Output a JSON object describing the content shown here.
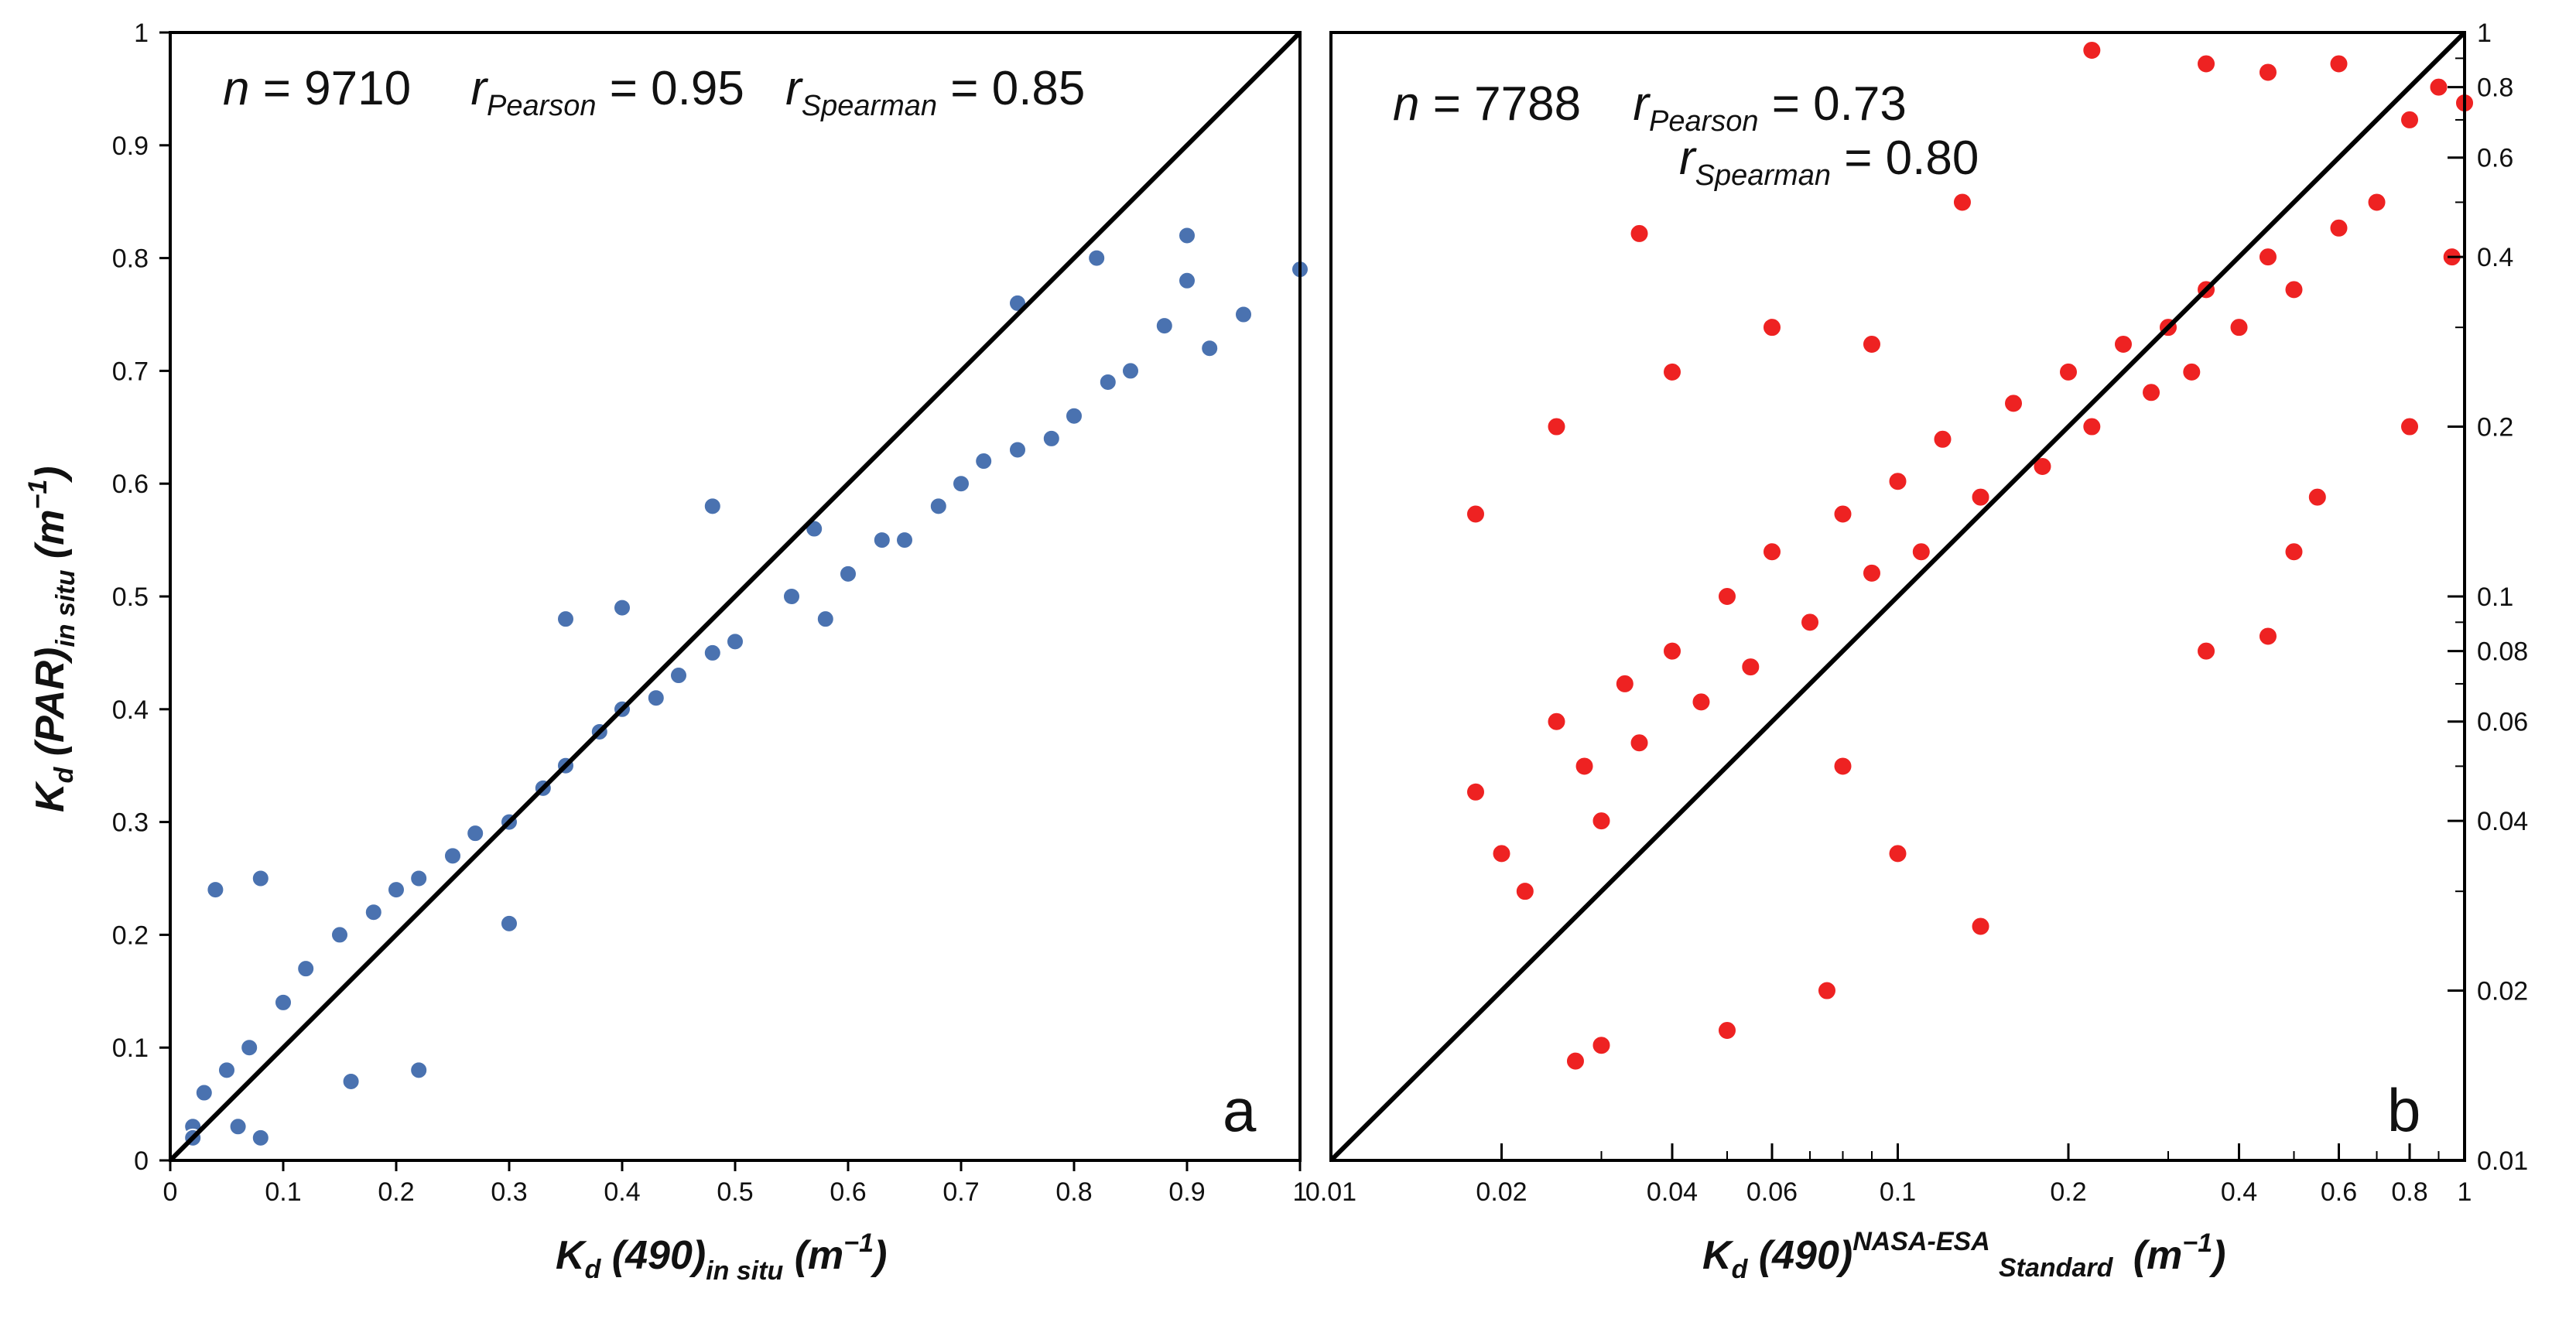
{
  "chart_data": [
    {
      "type": "scatter",
      "panel_label": "a",
      "marker_color": "#4a72b0",
      "x_scale": "linear",
      "y_scale": "linear",
      "xlim": [
        0,
        1
      ],
      "ylim": [
        0,
        1
      ],
      "x_ticks": [
        "0",
        "0.1",
        "0.2",
        "0.3",
        "0.4",
        "0.5",
        "0.6",
        "0.7",
        "0.8",
        "0.9",
        "1"
      ],
      "y_ticks": [
        "0",
        "0.1",
        "0.2",
        "0.3",
        "0.4",
        "0.5",
        "0.6",
        "0.7",
        "0.8",
        "0.9",
        "1"
      ],
      "xlabel": {
        "main": "K",
        "sub1": "d",
        "mid": " (490)",
        "sub2": "in situ",
        "unit": " (m",
        "exp": "−1",
        "close": ")"
      },
      "ylabel": {
        "main": "K",
        "sub1": "d",
        "mid": " (PAR)",
        "sub2": "in situ",
        "unit": " (m",
        "exp": "−1",
        "close": ")"
      },
      "stats": {
        "n_label": "n",
        "n_value": " = 9710",
        "r_label": "r",
        "pearson_sub": "Pearson",
        "pearson_value": " = 0.95",
        "spearman_sub": "Spearman",
        "spearman_value": " = 0.85"
      },
      "reference_line": "1:1",
      "points_sample": [
        [
          0.02,
          0.03
        ],
        [
          0.03,
          0.06
        ],
        [
          0.05,
          0.08
        ],
        [
          0.07,
          0.1
        ],
        [
          0.1,
          0.14
        ],
        [
          0.12,
          0.17
        ],
        [
          0.15,
          0.2
        ],
        [
          0.18,
          0.22
        ],
        [
          0.2,
          0.24
        ],
        [
          0.22,
          0.25
        ],
        [
          0.25,
          0.27
        ],
        [
          0.27,
          0.29
        ],
        [
          0.3,
          0.3
        ],
        [
          0.33,
          0.33
        ],
        [
          0.35,
          0.35
        ],
        [
          0.38,
          0.38
        ],
        [
          0.4,
          0.4
        ],
        [
          0.43,
          0.41
        ],
        [
          0.45,
          0.43
        ],
        [
          0.48,
          0.45
        ],
        [
          0.5,
          0.46
        ],
        [
          0.55,
          0.5
        ],
        [
          0.58,
          0.48
        ],
        [
          0.6,
          0.52
        ],
        [
          0.63,
          0.55
        ],
        [
          0.65,
          0.55
        ],
        [
          0.68,
          0.58
        ],
        [
          0.7,
          0.6
        ],
        [
          0.72,
          0.62
        ],
        [
          0.75,
          0.63
        ],
        [
          0.78,
          0.64
        ],
        [
          0.8,
          0.66
        ],
        [
          0.83,
          0.69
        ],
        [
          0.85,
          0.7
        ],
        [
          0.88,
          0.74
        ],
        [
          0.9,
          0.78
        ],
        [
          0.92,
          0.72
        ],
        [
          0.95,
          0.75
        ],
        [
          1.0,
          0.79
        ],
        [
          0.9,
          0.82
        ],
        [
          0.82,
          0.8
        ],
        [
          0.75,
          0.76
        ],
        [
          0.48,
          0.58
        ],
        [
          0.16,
          0.07
        ],
        [
          0.22,
          0.08
        ],
        [
          0.3,
          0.21
        ],
        [
          0.04,
          0.24
        ],
        [
          0.08,
          0.25
        ],
        [
          0.35,
          0.48
        ],
        [
          0.4,
          0.49
        ],
        [
          0.57,
          0.56
        ],
        [
          0.02,
          0.02
        ],
        [
          0.06,
          0.03
        ],
        [
          0.08,
          0.02
        ]
      ]
    },
    {
      "type": "scatter",
      "panel_label": "b",
      "marker_color": "#ee2222",
      "x_scale": "log",
      "y_scale": "log",
      "xlim": [
        0.01,
        1
      ],
      "ylim": [
        0.01,
        1
      ],
      "x_ticks": [
        {
          "value": 0.01,
          "label": "0.01"
        },
        {
          "value": 0.02,
          "label": "0.02"
        },
        {
          "value": 0.04,
          "label": "0.04"
        },
        {
          "value": 0.06,
          "label": "0.06"
        },
        {
          "value": 0.1,
          "label": "0.1"
        },
        {
          "value": 0.2,
          "label": "0.2"
        },
        {
          "value": 0.4,
          "label": "0.4"
        },
        {
          "value": 0.6,
          "label": "0.6"
        },
        {
          "value": 0.8,
          "label": "0.8"
        },
        {
          "value": 1,
          "label": "1"
        }
      ],
      "y_ticks": [
        {
          "value": 0.01,
          "label": "0.01"
        },
        {
          "value": 0.02,
          "label": "0.02"
        },
        {
          "value": 0.04,
          "label": "0.04"
        },
        {
          "value": 0.06,
          "label": "0.06"
        },
        {
          "value": 0.08,
          "label": "0.08"
        },
        {
          "value": 0.1,
          "label": "0.1"
        },
        {
          "value": 0.2,
          "label": "0.2"
        },
        {
          "value": 0.4,
          "label": "0.4"
        },
        {
          "value": 0.6,
          "label": "0.6"
        },
        {
          "value": 0.8,
          "label": "0.8"
        },
        {
          "value": 1,
          "label": "1"
        }
      ],
      "xlabel": {
        "main": "K",
        "sub1": "d",
        "mid": " (490)",
        "sup": "NASA-ESA",
        "sub2": "Standard",
        "unit": " (m",
        "exp": "−1",
        "close": ")"
      },
      "stats": {
        "n_label": "n",
        "n_value": " = 7788",
        "r_label": "r",
        "pearson_sub": "Pearson",
        "pearson_value": " = 0.73",
        "spearman_sub": "Spearman",
        "spearman_value": " = 0.80"
      },
      "reference_line": "1:1",
      "points_sample": [
        [
          0.018,
          0.045
        ],
        [
          0.02,
          0.035
        ],
        [
          0.022,
          0.03
        ],
        [
          0.025,
          0.06
        ],
        [
          0.028,
          0.05
        ],
        [
          0.03,
          0.04
        ],
        [
          0.033,
          0.07
        ],
        [
          0.035,
          0.055
        ],
        [
          0.04,
          0.08
        ],
        [
          0.045,
          0.065
        ],
        [
          0.05,
          0.1
        ],
        [
          0.055,
          0.075
        ],
        [
          0.06,
          0.12
        ],
        [
          0.07,
          0.09
        ],
        [
          0.08,
          0.14
        ],
        [
          0.09,
          0.11
        ],
        [
          0.1,
          0.16
        ],
        [
          0.11,
          0.12
        ],
        [
          0.12,
          0.19
        ],
        [
          0.14,
          0.15
        ],
        [
          0.16,
          0.22
        ],
        [
          0.18,
          0.17
        ],
        [
          0.2,
          0.25
        ],
        [
          0.22,
          0.2
        ],
        [
          0.25,
          0.28
        ],
        [
          0.28,
          0.23
        ],
        [
          0.3,
          0.3
        ],
        [
          0.33,
          0.25
        ],
        [
          0.35,
          0.35
        ],
        [
          0.4,
          0.3
        ],
        [
          0.45,
          0.4
        ],
        [
          0.5,
          0.35
        ],
        [
          0.6,
          0.45
        ],
        [
          0.7,
          0.5
        ],
        [
          0.8,
          0.7
        ],
        [
          0.9,
          0.8
        ],
        [
          1.0,
          0.75
        ],
        [
          0.22,
          0.93
        ],
        [
          0.35,
          0.88
        ],
        [
          0.45,
          0.85
        ],
        [
          0.6,
          0.88
        ],
        [
          0.13,
          0.5
        ],
        [
          0.035,
          0.44
        ],
        [
          0.027,
          0.015
        ],
        [
          0.03,
          0.016
        ],
        [
          0.05,
          0.017
        ],
        [
          0.14,
          0.026
        ],
        [
          0.075,
          0.02
        ],
        [
          0.018,
          0.14
        ],
        [
          0.025,
          0.2
        ],
        [
          0.04,
          0.25
        ],
        [
          0.06,
          0.3
        ],
        [
          0.09,
          0.28
        ],
        [
          0.5,
          0.12
        ],
        [
          0.55,
          0.15
        ],
        [
          0.8,
          0.2
        ],
        [
          0.95,
          0.4
        ],
        [
          0.45,
          0.085
        ],
        [
          0.35,
          0.08
        ],
        [
          0.1,
          0.035
        ],
        [
          0.08,
          0.05
        ]
      ]
    }
  ]
}
